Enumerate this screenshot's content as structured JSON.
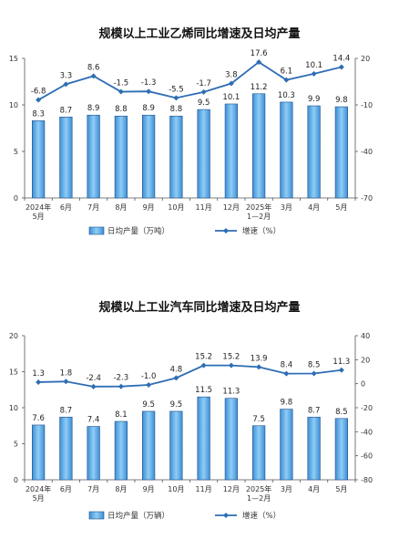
{
  "chart_data": [
    {
      "type": "bar+line",
      "title": "规模以上工业乙烯同比增速及日均产量",
      "categories": [
        "2024年\n5月",
        "6月",
        "7月",
        "8月",
        "9月",
        "10月",
        "11月",
        "12月",
        "2025年\n1—2月",
        "3月",
        "4月",
        "5月"
      ],
      "series": [
        {
          "name": "日均产量（万吨）",
          "kind": "bar",
          "axis": "left",
          "values": [
            8.3,
            8.7,
            8.9,
            8.8,
            8.9,
            8.8,
            9.5,
            10.1,
            11.2,
            10.3,
            9.9,
            9.8
          ],
          "color": "#5aa9e6"
        },
        {
          "name": "增速（%）",
          "kind": "line",
          "axis": "right",
          "values": [
            -6.8,
            3.3,
            8.6,
            -1.5,
            -1.3,
            -5.5,
            -1.7,
            3.8,
            17.6,
            6.1,
            10.1,
            14.4
          ],
          "color": "#2e6db4"
        }
      ],
      "yleft": {
        "min": 0,
        "max": 15,
        "ticks": [
          0,
          5,
          10,
          15
        ]
      },
      "yright": {
        "min": -70,
        "max": 20,
        "ticks": [
          -70,
          -40,
          -10,
          20
        ]
      },
      "legend_position": "bottom",
      "grid": false
    },
    {
      "type": "bar+line",
      "title": "规模以上工业汽车同比增速及日均产量",
      "categories": [
        "2024年\n5月",
        "6月",
        "7月",
        "8月",
        "9月",
        "10月",
        "11月",
        "12月",
        "2025年\n1—2月",
        "3月",
        "4月",
        "5月"
      ],
      "series": [
        {
          "name": "日均产量（万辆）",
          "kind": "bar",
          "axis": "left",
          "values": [
            7.6,
            8.7,
            7.4,
            8.1,
            9.5,
            9.5,
            11.5,
            11.3,
            7.5,
            9.8,
            8.7,
            8.5
          ],
          "color": "#5aa9e6"
        },
        {
          "name": "增速（%）",
          "kind": "line",
          "axis": "right",
          "values": [
            1.3,
            1.8,
            -2.4,
            -2.3,
            -1.0,
            4.8,
            15.2,
            15.2,
            13.9,
            8.4,
            8.5,
            11.3
          ],
          "color": "#2e6db4"
        }
      ],
      "yleft": {
        "min": 0,
        "max": 20,
        "ticks": [
          0,
          5,
          10,
          15,
          20
        ]
      },
      "yright": {
        "min": -80,
        "max": 40,
        "ticks": [
          -80,
          -60,
          -40,
          -20,
          0,
          20,
          40
        ]
      },
      "legend_position": "bottom",
      "grid": false
    }
  ]
}
